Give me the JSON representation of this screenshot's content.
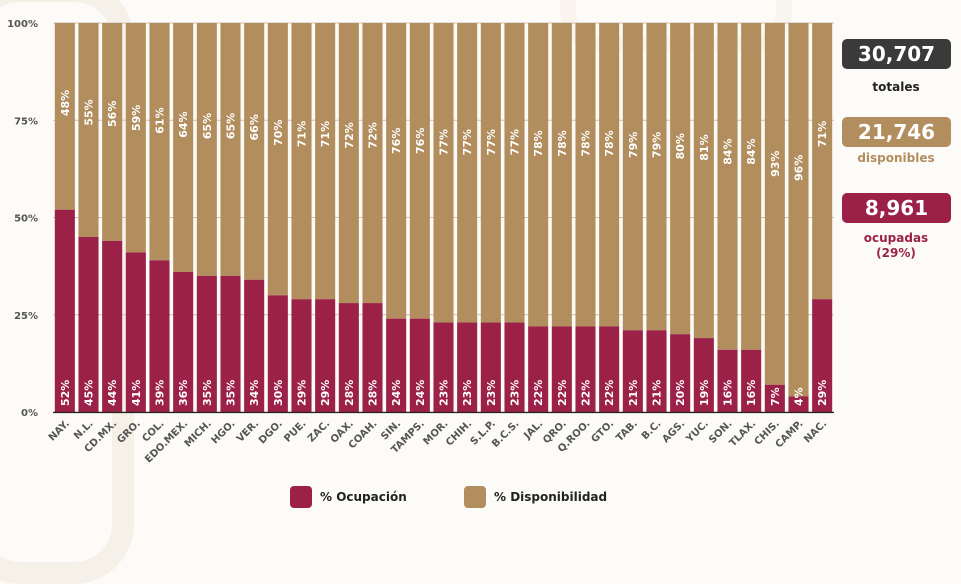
{
  "colors": {
    "ocupacion": "#9b2148",
    "disponibilidad": "#b28e5e",
    "totales_box": "#3a3a3a",
    "background": "#fdfbf8"
  },
  "stats": {
    "totales": {
      "value": "30,707",
      "label": "totales"
    },
    "disponibles": {
      "value": "21,746",
      "label": "disponibles"
    },
    "ocupadas": {
      "value": "8,961",
      "label": "ocupadas",
      "sub": "(29%)"
    }
  },
  "legend": {
    "ocupacion": "% Ocupación",
    "disponibilidad": "% Disponibilidad"
  },
  "chart_data": {
    "type": "bar",
    "stacked": true,
    "normalized": true,
    "title": "",
    "xlabel": "",
    "ylabel": "",
    "ylim": [
      0,
      100
    ],
    "yticks": [
      "0%",
      "25%",
      "50%",
      "75%",
      "100%"
    ],
    "grid": true,
    "legend_position": "bottom",
    "categories": [
      "NAY.",
      "N.L.",
      "CD.MX.",
      "GRO.",
      "COL.",
      "EDO.MEX.",
      "MICH.",
      "HGO.",
      "VER.",
      "DGO.",
      "PUE.",
      "ZAC.",
      "OAX.",
      "COAH.",
      "SIN.",
      "TAMPS.",
      "MOR.",
      "CHIH.",
      "S.L.P.",
      "B.C.S.",
      "JAL.",
      "QRO.",
      "Q.ROO.",
      "GTO.",
      "TAB.",
      "B.C.",
      "AGS.",
      "YUC.",
      "SON.",
      "TLAX.",
      "CHIS.",
      "CAMP.",
      "NAC."
    ],
    "series": [
      {
        "name": "% Ocupación",
        "values": [
          52,
          45,
          44,
          41,
          39,
          36,
          35,
          35,
          34,
          30,
          29,
          29,
          28,
          28,
          24,
          24,
          23,
          23,
          23,
          23,
          22,
          22,
          22,
          22,
          21,
          21,
          20,
          19,
          16,
          16,
          7,
          4,
          29
        ]
      },
      {
        "name": "% Disponibilidad",
        "values": [
          48,
          55,
          56,
          59,
          61,
          64,
          65,
          65,
          66,
          70,
          71,
          71,
          72,
          72,
          76,
          76,
          77,
          77,
          77,
          77,
          78,
          78,
          78,
          78,
          79,
          79,
          80,
          81,
          84,
          84,
          93,
          96,
          71
        ]
      }
    ]
  }
}
